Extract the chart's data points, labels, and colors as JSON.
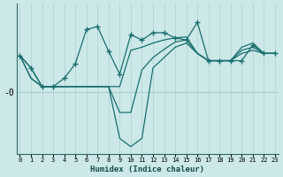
{
  "xlabel": "Humidex (Indice chaleur)",
  "background_color": "#cce8e8",
  "line_color": "#1a6e6e",
  "zero_label": "-0",
  "ylim": [
    -55,
    90
  ],
  "xlim": [
    -0.3,
    23.3
  ],
  "main_y": [
    40,
    28,
    10,
    10,
    18,
    32,
    65,
    68,
    44,
    22,
    60,
    55,
    62,
    62,
    57,
    55,
    72,
    35,
    35,
    35,
    35,
    50,
    42,
    42
  ],
  "fan1_y": [
    40,
    28,
    10,
    10,
    10,
    10,
    10,
    10,
    10,
    10,
    45,
    48,
    52,
    55,
    57,
    58,
    42,
    35,
    35,
    35,
    48,
    52,
    42,
    42
  ],
  "fan2_y": [
    40,
    18,
    10,
    10,
    10,
    10,
    10,
    10,
    10,
    -15,
    -15,
    26,
    38,
    46,
    53,
    55,
    42,
    35,
    35,
    35,
    45,
    48,
    42,
    42
  ],
  "fan3_y": [
    40,
    18,
    10,
    10,
    10,
    10,
    10,
    10,
    10,
    -40,
    -48,
    -40,
    28,
    38,
    48,
    52,
    42,
    35,
    35,
    35,
    42,
    45,
    42,
    42
  ],
  "vertical_line_color": "#b8d8d8",
  "zero_line_color": "#aacccc",
  "zero_y": 5,
  "x_ticks": [
    0,
    1,
    2,
    3,
    4,
    5,
    6,
    7,
    8,
    9,
    10,
    11,
    12,
    13,
    14,
    15,
    16,
    17,
    18,
    19,
    20,
    21,
    22,
    23
  ]
}
